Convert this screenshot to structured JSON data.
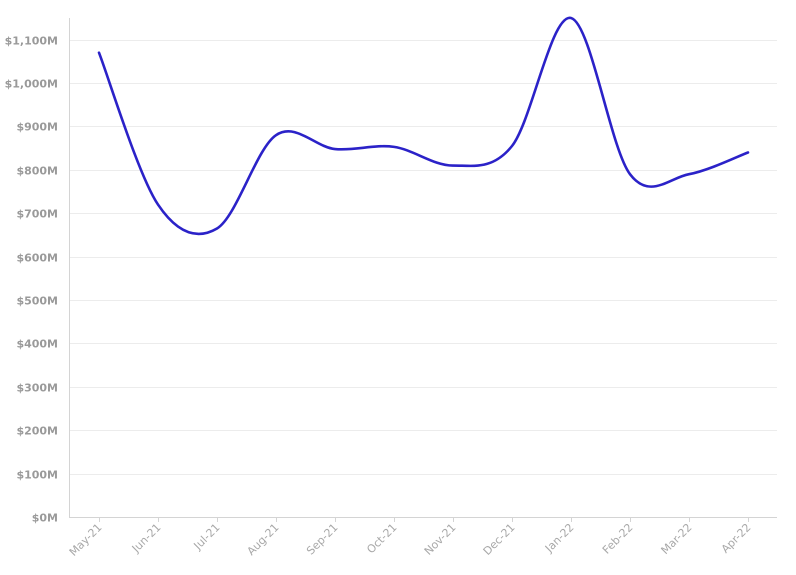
{
  "chart_data": {
    "type": "line",
    "title": "",
    "xlabel": "",
    "ylabel": "",
    "categories": [
      "May-21",
      "Jun-21",
      "Jul-21",
      "Aug-21",
      "Sep-21",
      "Oct-21",
      "Nov-21",
      "Dec-21",
      "Jan-22",
      "Feb-22",
      "Mar-22",
      "Apr-22"
    ],
    "series": [
      {
        "values": [
          1070,
          720,
          665,
          880,
          848,
          853,
          810,
          855,
          1150,
          790,
          790,
          840
        ]
      }
    ],
    "ylim": [
      0,
      1150
    ],
    "yticks": [
      0,
      100,
      200,
      300,
      400,
      500,
      600,
      700,
      800,
      900,
      1000,
      1100
    ],
    "ytick_labels": [
      "$0M",
      "$100M",
      "$200M",
      "$300M",
      "$400M",
      "$500M",
      "$600M",
      "$700M",
      "$800M",
      "$900M",
      "$1,000M",
      "$1,100M"
    ],
    "grid": true,
    "line_color": "#2b22c8"
  }
}
